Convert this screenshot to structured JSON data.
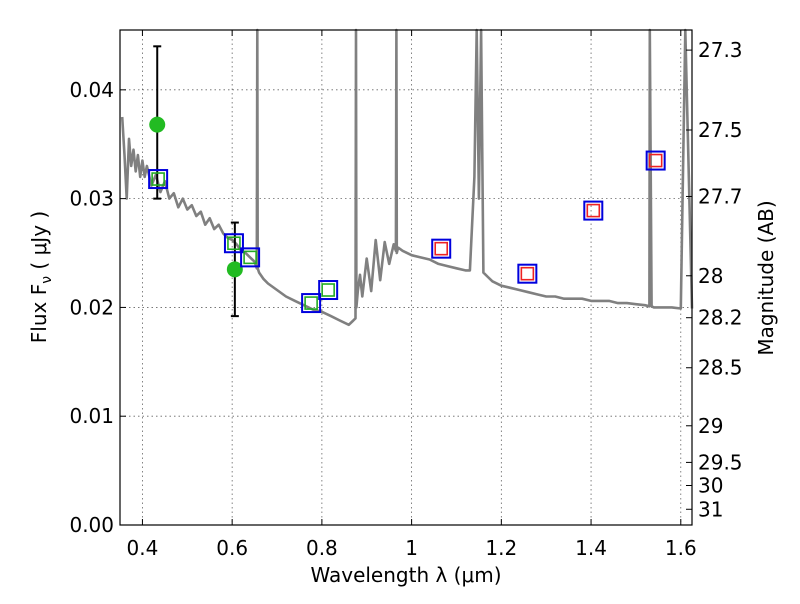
{
  "chart_data": {
    "type": "scatter",
    "xlabel": "Wavelength  λ (μm)",
    "ylabel": "Flux  F",
    "ylabel_sub": "ν",
    "ylabel_unit": "( μJy )",
    "y2label": "Magnitude (AB)",
    "xlim": [
      0.35,
      1.625
    ],
    "ylim": [
      0.0,
      0.0455
    ],
    "grid": true,
    "x_ticks": [
      "0.4",
      "0.6",
      "0.8",
      "1",
      "1.2",
      "1.4",
      "1.6"
    ],
    "y_ticks": [
      "0.00",
      "0.01",
      "0.02",
      "0.03",
      "0.04"
    ],
    "mag_ticks": [
      "27.3",
      "27.5",
      "27.7",
      "28",
      "28.2",
      "28.5",
      "29",
      "29.5",
      "30",
      "31"
    ],
    "colors": {
      "template": "#808080",
      "observed": "#22bb22",
      "model_outline": "#0000dd",
      "model_near_ir": "#ee2222",
      "model_optical": "#22aa22",
      "errorbar": "#000000"
    },
    "series": [
      {
        "kind": "line",
        "x": [
          0.355,
          0.36,
          0.365,
          0.37,
          0.375,
          0.38,
          0.385,
          0.39,
          0.395,
          0.4,
          0.405,
          0.41,
          0.42,
          0.43,
          0.44,
          0.45,
          0.46,
          0.47,
          0.48,
          0.49,
          0.5,
          0.51,
          0.52,
          0.53,
          0.54,
          0.55,
          0.56,
          0.57,
          0.58,
          0.59,
          0.6,
          0.61,
          0.62,
          0.63,
          0.64,
          0.65,
          0.655,
          0.656,
          0.657,
          0.66,
          0.67,
          0.68,
          0.7,
          0.72,
          0.74,
          0.76,
          0.78,
          0.8,
          0.82,
          0.84,
          0.86,
          0.87,
          0.875,
          0.876,
          0.877,
          0.88,
          0.885,
          0.89,
          0.9,
          0.91,
          0.92,
          0.93,
          0.94,
          0.95,
          0.96,
          0.965,
          0.966,
          0.967,
          0.97,
          0.98,
          1.0,
          1.02,
          1.04,
          1.06,
          1.08,
          1.1,
          1.12,
          1.13,
          1.14,
          1.145,
          1.15,
          1.155,
          1.16,
          1.17,
          1.18,
          1.2,
          1.22,
          1.24,
          1.26,
          1.28,
          1.3,
          1.32,
          1.34,
          1.36,
          1.38,
          1.4,
          1.42,
          1.44,
          1.46,
          1.48,
          1.5,
          1.52,
          1.53,
          1.531,
          1.535,
          1.54,
          1.56,
          1.58,
          1.6,
          1.61,
          1.625
        ],
        "y": [
          0.0375,
          0.034,
          0.03,
          0.0355,
          0.033,
          0.0345,
          0.0325,
          0.034,
          0.032,
          0.0335,
          0.032,
          0.033,
          0.0312,
          0.0322,
          0.0306,
          0.0316,
          0.03,
          0.0305,
          0.0292,
          0.03,
          0.029,
          0.0294,
          0.0284,
          0.0288,
          0.0276,
          0.0282,
          0.0272,
          0.0276,
          0.0268,
          0.0264,
          0.0262,
          0.0258,
          0.0252,
          0.025,
          0.0246,
          0.0242,
          0.0236,
          0.06,
          0.0236,
          0.0232,
          0.0226,
          0.0222,
          0.0216,
          0.021,
          0.0206,
          0.0202,
          0.0198,
          0.0196,
          0.0192,
          0.0188,
          0.0184,
          0.0188,
          0.019,
          0.06,
          0.02,
          0.0215,
          0.023,
          0.021,
          0.0245,
          0.0215,
          0.0262,
          0.0225,
          0.026,
          0.024,
          0.0258,
          0.0252,
          0.06,
          0.025,
          0.0255,
          0.0252,
          0.0248,
          0.0246,
          0.0244,
          0.024,
          0.0238,
          0.0236,
          0.0234,
          0.0234,
          0.032,
          0.06,
          0.03,
          0.06,
          0.0232,
          0.0228,
          0.0224,
          0.022,
          0.0218,
          0.0216,
          0.0214,
          0.0212,
          0.021,
          0.021,
          0.0208,
          0.0208,
          0.0208,
          0.0206,
          0.0206,
          0.0206,
          0.0204,
          0.0204,
          0.0203,
          0.0202,
          0.0201,
          0.06,
          0.0201,
          0.02,
          0.02,
          0.02,
          0.0199,
          0.06,
          0.0199
        ]
      },
      {
        "kind": "points",
        "x": [
          0.433,
          0.606
        ],
        "y": [
          0.0368,
          0.0235
        ],
        "yerr_low": [
          0.03,
          0.0192
        ],
        "yerr_high": [
          0.044,
          0.0278
        ]
      },
      {
        "kind": "squares",
        "x": [
          0.435,
          0.604,
          0.64,
          0.776,
          0.814,
          1.066,
          1.258,
          1.405,
          1.544
        ],
        "y": [
          0.0318,
          0.0259,
          0.0246,
          0.0204,
          0.0216,
          0.0254,
          0.0231,
          0.0289,
          0.0335
        ],
        "fill_class": [
          "optical",
          "optical",
          "optical",
          "optical",
          "optical",
          "near_ir",
          "near_ir",
          "near_ir",
          "near_ir"
        ]
      }
    ]
  }
}
